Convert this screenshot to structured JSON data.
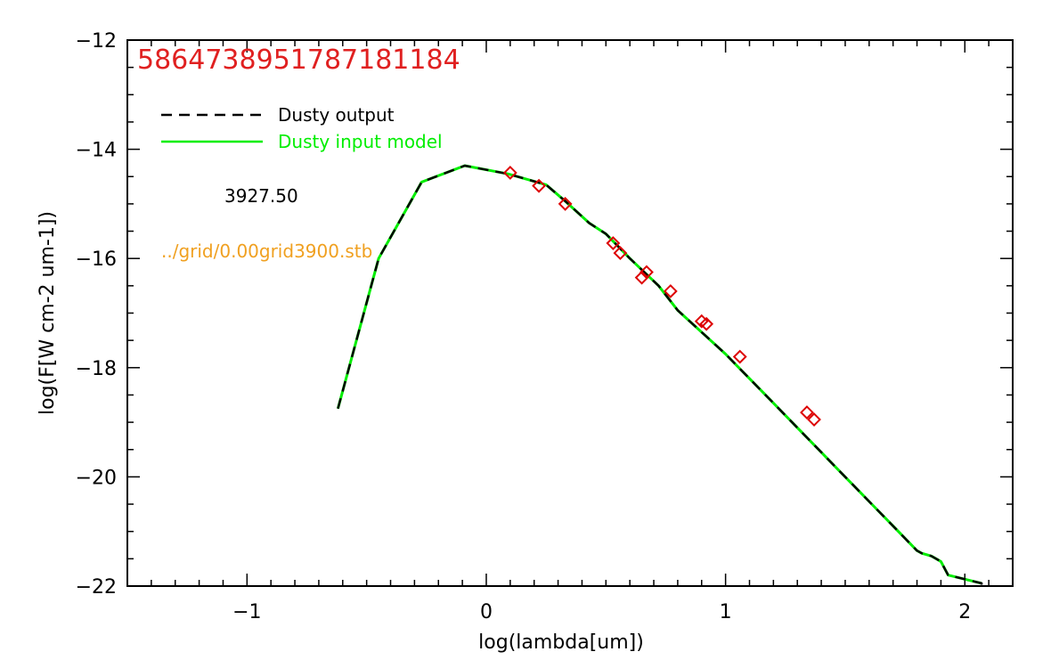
{
  "chart_data": {
    "type": "line",
    "title": "5864738951787181184",
    "xlabel": "log(lambda[um])",
    "ylabel": "log(F[W cm-2 um-1])",
    "xlim": [
      -1.5,
      2.2
    ],
    "ylim": [
      -22,
      -12
    ],
    "x_ticks": [
      {
        "value": -1,
        "label": "−1"
      },
      {
        "value": 0,
        "label": "0"
      },
      {
        "value": 1,
        "label": "1"
      },
      {
        "value": 2,
        "label": "2"
      }
    ],
    "y_ticks": [
      {
        "value": -12,
        "label": "−12"
      },
      {
        "value": -14,
        "label": "−14"
      },
      {
        "value": -16,
        "label": "−16"
      },
      {
        "value": -18,
        "label": "−18"
      },
      {
        "value": -20,
        "label": "−20"
      },
      {
        "value": -22,
        "label": "−22"
      }
    ],
    "x_minor_step": 0.1,
    "y_minor_step": 0.5,
    "legend_position": "top-left",
    "annotations": [
      "3927.50",
      "../grid/0.00grid3900.stb"
    ],
    "series": [
      {
        "name": "Dusty output",
        "color": "#000000",
        "style": "dashed",
        "x": [
          -0.62,
          -0.45,
          -0.27,
          -0.09,
          0.09,
          0.25,
          0.33,
          0.43,
          0.5,
          0.6,
          0.72,
          0.8,
          0.9,
          1.0,
          1.1,
          1.2,
          1.3,
          1.4,
          1.5,
          1.6,
          1.7,
          1.8,
          1.82,
          1.86,
          1.9,
          1.93,
          2.07,
          2.07
        ],
        "y": [
          -18.75,
          -16.0,
          -14.6,
          -14.3,
          -14.45,
          -14.65,
          -14.95,
          -15.35,
          -15.55,
          -16.0,
          -16.5,
          -16.95,
          -17.35,
          -17.75,
          -18.2,
          -18.65,
          -19.1,
          -19.55,
          -20.0,
          -20.45,
          -20.9,
          -21.35,
          -21.4,
          -21.45,
          -21.55,
          -21.8,
          -21.95,
          -22.2
        ]
      },
      {
        "name": "Dusty input model",
        "color": "#00ee00",
        "style": "solid",
        "x": [
          -0.62,
          -0.45,
          -0.27,
          -0.09,
          0.09,
          0.25,
          0.33,
          0.43,
          0.5,
          0.6,
          0.72,
          0.8,
          0.9,
          1.0,
          1.1,
          1.2,
          1.3,
          1.4,
          1.5,
          1.6,
          1.7,
          1.8,
          1.82,
          1.86,
          1.9,
          1.93,
          2.07
        ],
        "y": [
          -18.75,
          -16.0,
          -14.6,
          -14.3,
          -14.45,
          -14.65,
          -14.95,
          -15.35,
          -15.55,
          -16.0,
          -16.5,
          -16.95,
          -17.35,
          -17.75,
          -18.2,
          -18.65,
          -19.1,
          -19.55,
          -20.0,
          -20.45,
          -20.9,
          -21.35,
          -21.4,
          -21.45,
          -21.55,
          -21.8,
          -21.95
        ]
      }
    ],
    "points": {
      "color": "#dd0000",
      "marker": "diamond",
      "x": [
        0.1,
        0.22,
        0.33,
        0.53,
        0.56,
        0.65,
        0.67,
        0.77,
        0.9,
        0.92,
        1.06,
        1.34,
        1.37
      ],
      "y": [
        -14.43,
        -14.67,
        -15.0,
        -15.72,
        -15.9,
        -16.35,
        -16.25,
        -16.6,
        -17.15,
        -17.2,
        -17.8,
        -18.82,
        -18.95
      ]
    }
  },
  "colors": {
    "title": "#e02020",
    "grid_path_text": "#f0a020",
    "temperature_text": "#000000",
    "axes": "#000000"
  }
}
